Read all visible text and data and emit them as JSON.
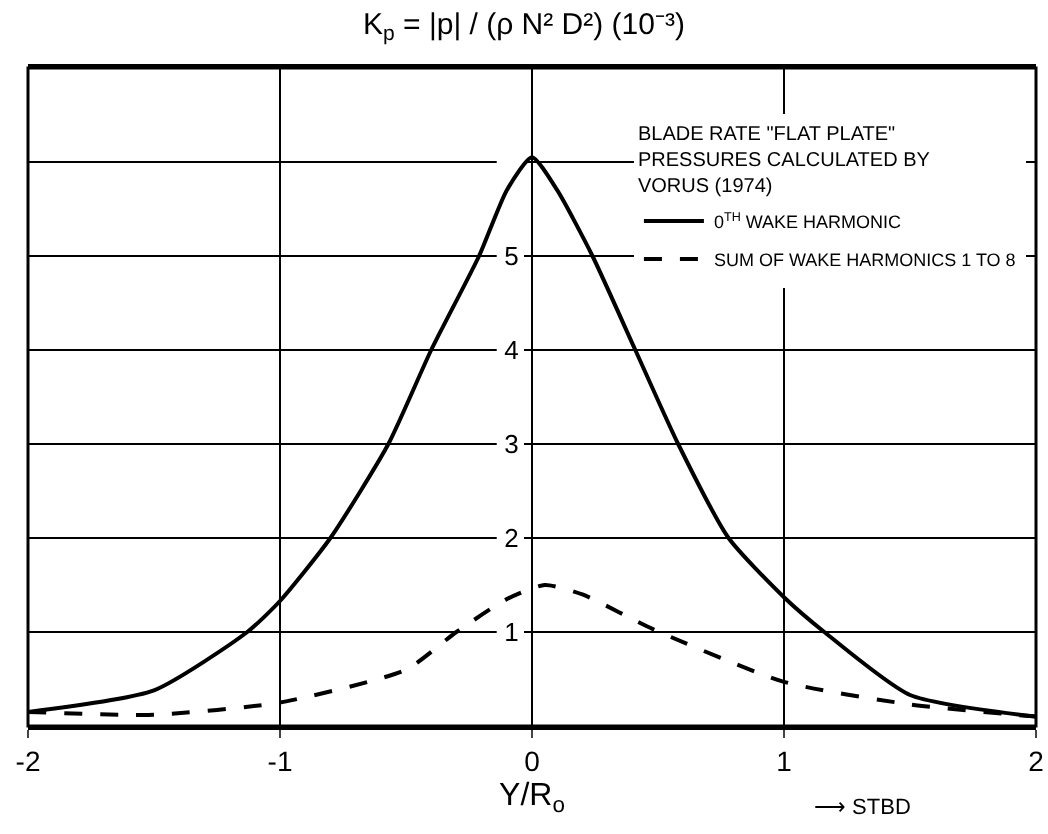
{
  "chart_data": {
    "type": "line",
    "title": "K$_{p}$ = |p| / (ρ N² D²) (10⁻³)",
    "xlabel": "Y/R$_{o}$",
    "legend_title": "BLADE RATE \"FLAT PLATE\" PRESSURES CALCULATED BY VORUS (1974)",
    "annotations": [
      "⟶ STBD"
    ],
    "series": [
      {
        "name": "0$^{TH}$ WAKE HARMONIC",
        "color": "#000000",
        "line_style": "solid",
        "x": [
          -2,
          -1.5,
          -1.13,
          -1,
          -0.8,
          -0.57,
          -0.4,
          -0.21,
          -0.1,
          0,
          0.1,
          0.24,
          0.41,
          0.58,
          0.78,
          1,
          1.16,
          1.5,
          2
        ],
        "values": [
          0.15,
          0.38,
          1.0,
          1.33,
          2.0,
          3.0,
          4.0,
          5.0,
          5.7,
          6.05,
          5.7,
          5.0,
          4.0,
          3.0,
          2.0,
          1.37,
          1.0,
          0.33,
          0.1
        ]
      },
      {
        "name": "SUM OF WAKE HARMONICS 1 TO 8",
        "color": "#000000",
        "line_style": "dashed",
        "x": [
          -2,
          -1.5,
          -1,
          -0.5,
          -0.3,
          -0.1,
          0.05,
          0.2,
          0.48,
          1,
          1.5,
          2
        ],
        "values": [
          0.15,
          0.12,
          0.25,
          0.6,
          1.0,
          1.35,
          1.5,
          1.4,
          1.03,
          0.47,
          0.23,
          0.1
        ]
      }
    ],
    "xlim": [
      -2,
      2
    ],
    "ylim": [
      0,
      7
    ],
    "xticks": [
      -2,
      -1,
      0,
      1,
      2
    ],
    "yticks": [
      1,
      2,
      3,
      4,
      5,
      {
        "value": 6,
        "label": null
      }
    ],
    "grid": true,
    "legend": "top right",
    "marker": "none"
  }
}
